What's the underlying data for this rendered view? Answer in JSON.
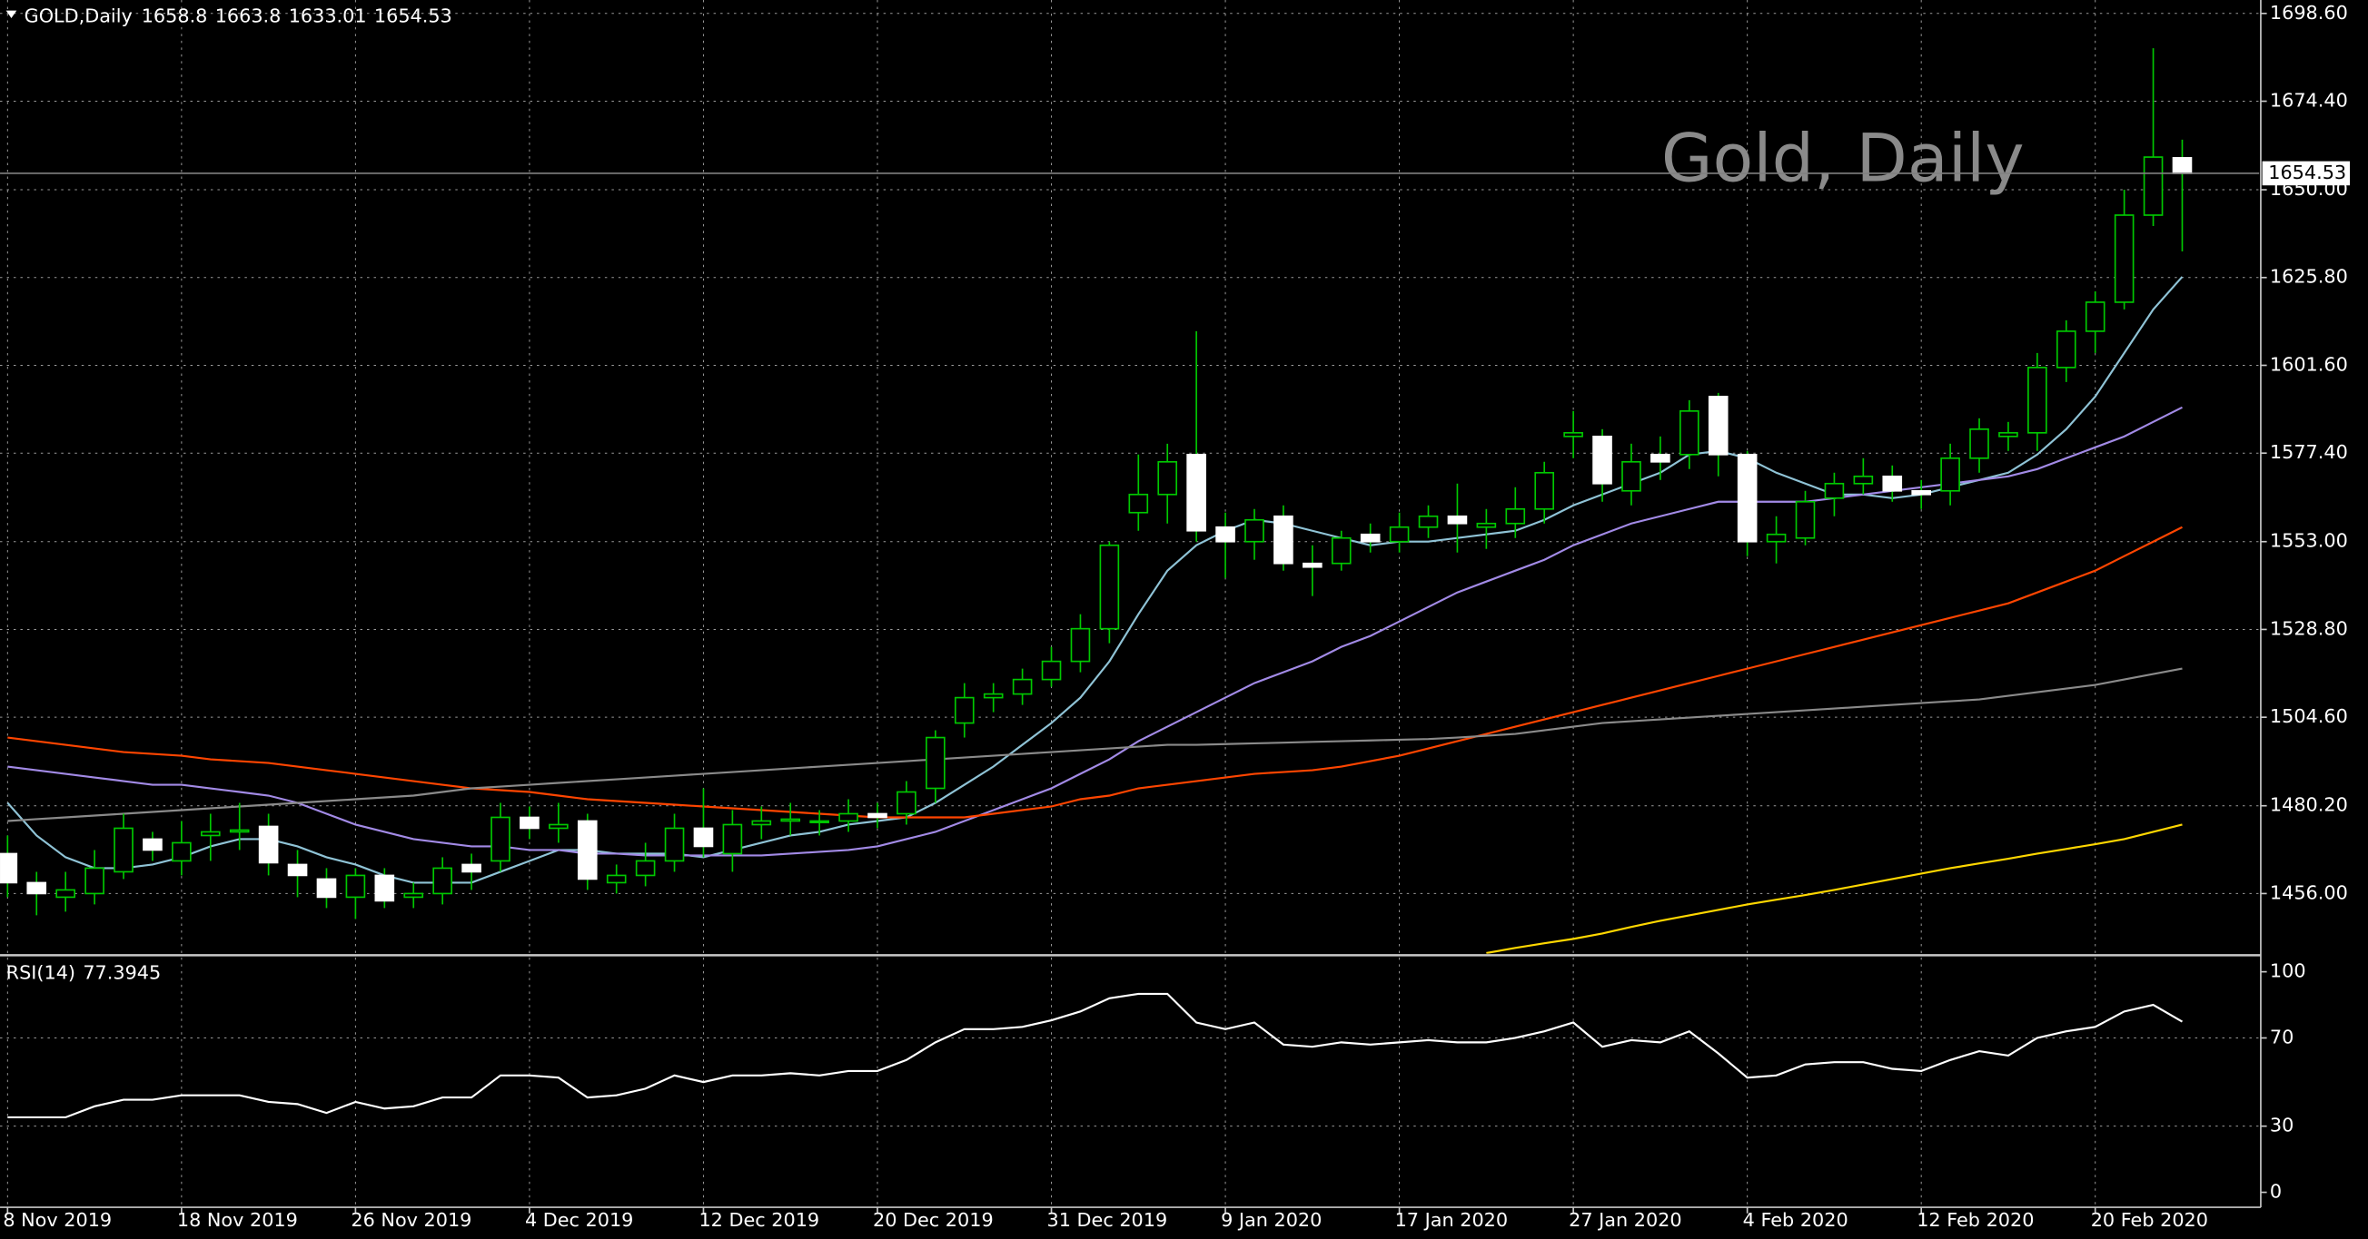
{
  "chart_data": [
    {
      "type": "candlestick",
      "title": "GOLD,Daily",
      "watermark": "Gold, Daily",
      "categories": [
        "8 Nov 2019",
        null,
        null,
        null,
        null,
        null,
        "18 Nov 2019",
        null,
        null,
        null,
        null,
        null,
        "26 Nov 2019",
        null,
        null,
        null,
        null,
        null,
        "4 Dec 2019",
        null,
        null,
        null,
        null,
        null,
        "12 Dec 2019",
        null,
        null,
        null,
        null,
        null,
        "20 Dec 2019",
        null,
        null,
        null,
        null,
        null,
        "31 Dec 2019",
        null,
        null,
        null,
        null,
        null,
        "9 Jan 2020",
        null,
        null,
        null,
        null,
        null,
        "17 Jan 2020",
        null,
        null,
        null,
        null,
        null,
        "27 Jan 2020",
        null,
        null,
        null,
        null,
        null,
        "4 Feb 2020",
        null,
        null,
        null,
        null,
        null,
        "12 Feb 2020",
        null,
        null,
        null,
        null,
        null,
        "20 Feb 2020",
        null,
        null,
        null
      ],
      "open": [
        1467,
        1459,
        1455,
        1456,
        1462,
        1471,
        1465,
        1472,
        1473,
        1474.5,
        1464,
        1460,
        1455,
        1461,
        1455,
        1456,
        1464,
        1465,
        1477,
        1474,
        1476,
        1459,
        1461,
        1465,
        1474,
        1467,
        1475,
        1476,
        1476,
        1476,
        1478,
        1478,
        1485,
        1503,
        1510,
        1511,
        1515,
        1520,
        1529,
        1561,
        1566,
        1577,
        1557,
        1553,
        1560,
        1547,
        1547,
        1555,
        1553,
        1557,
        1560,
        1557,
        1558,
        1562,
        1582,
        1582,
        1567,
        1577,
        1577,
        1593,
        1577,
        1553,
        1554,
        1565,
        1569,
        1571,
        1567,
        1567,
        1576,
        1582,
        1583,
        1601,
        1611,
        1619,
        1643,
        1658.8
      ],
      "high": [
        1472,
        1462,
        1462,
        1468,
        1478,
        1473,
        1476,
        1478,
        1481,
        1478,
        1468,
        1463,
        1463,
        1463,
        1459,
        1466,
        1467,
        1481,
        1480,
        1481,
        1478,
        1464,
        1470,
        1478,
        1485,
        1479,
        1480,
        1481,
        1479,
        1482,
        1481,
        1487,
        1501,
        1514,
        1514,
        1518,
        1524,
        1533,
        1553,
        1577,
        1580,
        1611,
        1561,
        1562,
        1563,
        1552,
        1556,
        1558,
        1561,
        1563,
        1569,
        1562,
        1568,
        1575,
        1589,
        1584,
        1580,
        1582,
        1592,
        1594,
        1578,
        1560,
        1567,
        1572,
        1576,
        1574,
        1570,
        1580,
        1587,
        1586,
        1605,
        1614,
        1622,
        1650,
        1689,
        1663.8
      ],
      "low": [
        1455,
        1450,
        1451,
        1453,
        1460,
        1465,
        1461,
        1465,
        1468,
        1461,
        1455,
        1452,
        1449,
        1452,
        1452,
        1453,
        1457,
        1462,
        1471,
        1470,
        1457,
        1456,
        1458,
        1462,
        1466,
        1462,
        1471,
        1472,
        1472,
        1473,
        1474,
        1475,
        1481,
        1499,
        1506,
        1508,
        1513,
        1517,
        1525,
        1556,
        1558,
        1553,
        1543,
        1548,
        1545,
        1538,
        1545,
        1550,
        1550,
        1554,
        1550,
        1551,
        1554,
        1558,
        1576,
        1564,
        1563,
        1570,
        1573,
        1571,
        1549,
        1547,
        1552,
        1560,
        1566,
        1564,
        1562,
        1563,
        1572,
        1578,
        1578,
        1597,
        1605,
        1617,
        1640,
        1633.01
      ],
      "close": [
        1459,
        1456,
        1457,
        1463,
        1474,
        1468,
        1470,
        1473,
        1473.5,
        1464.5,
        1461,
        1455,
        1461,
        1454,
        1456,
        1463,
        1462,
        1477,
        1474,
        1475,
        1460,
        1461,
        1465,
        1474,
        1469,
        1475,
        1476,
        1476.5,
        1476,
        1478,
        1477,
        1484,
        1499,
        1510,
        1511,
        1515,
        1520,
        1529,
        1552,
        1566,
        1575,
        1556,
        1553,
        1559,
        1547,
        1546,
        1554,
        1553,
        1557,
        1560,
        1558,
        1558,
        1562,
        1572,
        1583,
        1569,
        1575,
        1575,
        1589,
        1577,
        1553,
        1555,
        1564,
        1569,
        1571,
        1567,
        1566,
        1576,
        1584,
        1583,
        1601,
        1611,
        1619,
        1643,
        1659,
        1654.53
      ],
      "wick_color": "#00c800",
      "up_color": "#000000",
      "down_color": "#ffffff",
      "body_border": "#00c800",
      "series": [
        {
          "color": "#8fc3d6",
          "values": [
            1481,
            1472,
            1466,
            1463,
            1463,
            1464,
            1466,
            1469,
            1471,
            1471,
            1469,
            1466,
            1464,
            1461,
            1459,
            1459,
            1459,
            1462,
            1465,
            1468,
            1468,
            1467,
            1467,
            1467,
            1466,
            1468,
            1470,
            1472,
            1473,
            1475,
            1476,
            1477,
            1481,
            1486,
            1491,
            1497,
            1503,
            1510,
            1520,
            1533,
            1545,
            1552,
            1556,
            1559,
            1558,
            1556,
            1554,
            1552,
            1553,
            1553,
            1554,
            1555,
            1556,
            1559,
            1563,
            1566,
            1569,
            1572,
            1577,
            1578,
            1576,
            1572,
            1569,
            1566,
            1566,
            1565,
            1566,
            1568,
            1570,
            1572,
            1577,
            1584,
            1593,
            1605,
            1617,
            1626
          ]
        },
        {
          "color": "#a28ae6",
          "values": [
            1491,
            1490,
            1489,
            1488,
            1487,
            1486,
            1486,
            1485,
            1484,
            1483,
            1481,
            1478,
            1475,
            1473,
            1471,
            1470,
            1469,
            1469,
            1468,
            1468,
            1467,
            1467,
            1466.5,
            1466.5,
            1466.5,
            1466.5,
            1466.5,
            1467,
            1467.5,
            1468,
            1469,
            1471,
            1473,
            1476,
            1479,
            1482,
            1485,
            1489,
            1493,
            1498,
            1502,
            1506,
            1510,
            1514,
            1517,
            1520,
            1524,
            1527,
            1531,
            1535,
            1539,
            1542,
            1545,
            1548,
            1552,
            1555,
            1558,
            1560,
            1562,
            1564,
            1564,
            1564,
            1564,
            1565,
            1566,
            1567,
            1568,
            1569,
            1570,
            1571,
            1573,
            1576,
            1579,
            1582,
            1586,
            1590
          ]
        },
        {
          "color": "#ff4500",
          "values": [
            1499,
            1498,
            1497,
            1496,
            1495,
            1494.5,
            1494,
            1493,
            1492.5,
            1492,
            1491,
            1490,
            1489,
            1488,
            1487,
            1486,
            1485,
            1484.5,
            1484,
            1483,
            1482,
            1481.5,
            1481,
            1480.5,
            1480,
            1479.5,
            1479,
            1478.5,
            1478,
            1477.5,
            1477,
            1477,
            1477,
            1477,
            1478,
            1479,
            1480,
            1482,
            1483,
            1485,
            1486,
            1487,
            1488,
            1489,
            1489.5,
            1490,
            1491,
            1492.5,
            1494,
            1496,
            1498,
            1500,
            1502,
            1504,
            1506,
            1508,
            1510,
            1512,
            1514,
            1516,
            1518,
            1520,
            1522,
            1524,
            1526,
            1528,
            1530,
            1532,
            1534,
            1536,
            1539,
            1542,
            1545,
            1549,
            1553,
            1557
          ]
        },
        {
          "color": "#8a8a8a",
          "values": [
            1476,
            1476.5,
            1477,
            1477.5,
            1478,
            1478.5,
            1479,
            1479.5,
            1480,
            1480.5,
            1481,
            1481.5,
            1482,
            1482.5,
            1483,
            1484,
            1485,
            1485.5,
            1486,
            1486.5,
            1487,
            1487.5,
            1488,
            1488.5,
            1489,
            1489.5,
            1490,
            1490.5,
            1491,
            1491.5,
            1492,
            1492.5,
            1493,
            1493.5,
            1494,
            1494.5,
            1495,
            1495.5,
            1496,
            1496.5,
            1497,
            1497,
            1497.2,
            1497.4,
            1497.6,
            1497.8,
            1498,
            1498.2,
            1498.4,
            1498.6,
            1499,
            1499.5,
            1500,
            1501,
            1502,
            1503,
            1503.5,
            1504,
            1504.5,
            1505,
            1505.5,
            1506,
            1506.5,
            1507,
            1507.5,
            1508,
            1508.5,
            1509,
            1509.5,
            1510.5,
            1511.5,
            1512.5,
            1513.5,
            1515,
            1516.5,
            1518
          ]
        },
        {
          "color": "#ffd700",
          "values": [
            null,
            null,
            null,
            null,
            null,
            null,
            null,
            null,
            null,
            null,
            null,
            null,
            null,
            null,
            null,
            null,
            null,
            null,
            null,
            null,
            null,
            null,
            null,
            null,
            null,
            null,
            null,
            null,
            null,
            null,
            null,
            null,
            null,
            null,
            null,
            null,
            null,
            null,
            null,
            null,
            null,
            null,
            null,
            null,
            null,
            null,
            null,
            null,
            null,
            null,
            null,
            1439.6,
            1441,
            1442.3,
            1443.5,
            1445,
            1446.8,
            1448.5,
            1450,
            1451.5,
            1453,
            1454.3,
            1455.6,
            1457,
            1458.5,
            1460,
            1461.5,
            1463,
            1464.3,
            1465.6,
            1467,
            1468.3,
            1469.6,
            1471,
            1473,
            1475
          ]
        }
      ],
      "ylim": [
        1439.4,
        1702.3
      ],
      "yticks": [
        {
          "value": 1456,
          "label": "1456.00"
        },
        {
          "value": 1480.2,
          "label": "1480.20"
        },
        {
          "value": 1504.6,
          "label": "1504.60"
        },
        {
          "value": 1528.8,
          "label": "1528.80"
        },
        {
          "value": 1553,
          "label": "1553.00"
        },
        {
          "value": 1577.4,
          "label": "1577.40"
        },
        {
          "value": 1601.6,
          "label": "1601.60"
        },
        {
          "value": 1625.8,
          "label": "1625.80"
        },
        {
          "value": 1650,
          "label": "1650.00"
        },
        {
          "value": 1674.4,
          "label": "1674.40"
        },
        {
          "value": 1698.6,
          "label": "1698.60"
        }
      ],
      "grid": true
    },
    {
      "type": "line",
      "title": "RSI(14)",
      "color": "#ffffff",
      "values": [
        34,
        34,
        34,
        39,
        42,
        42,
        44,
        44,
        44,
        41,
        40,
        36,
        41,
        38,
        39,
        43,
        43,
        53,
        53,
        52,
        43,
        44,
        47,
        53,
        50,
        53,
        53,
        54,
        53,
        55,
        55,
        60,
        68,
        74,
        74,
        75,
        78,
        82,
        88,
        90,
        90,
        77,
        74,
        77,
        67,
        66,
        68,
        67,
        68,
        69,
        68,
        68,
        70,
        73,
        77,
        66,
        69,
        68,
        73,
        63,
        52,
        53,
        58,
        59,
        59,
        56,
        55,
        60,
        64,
        62,
        70,
        73,
        75,
        82,
        85,
        77.3945
      ],
      "ylim": [
        -6.8,
        106.8
      ],
      "yticks": [
        0,
        30,
        70,
        100
      ],
      "grid": true
    }
  ]
}
